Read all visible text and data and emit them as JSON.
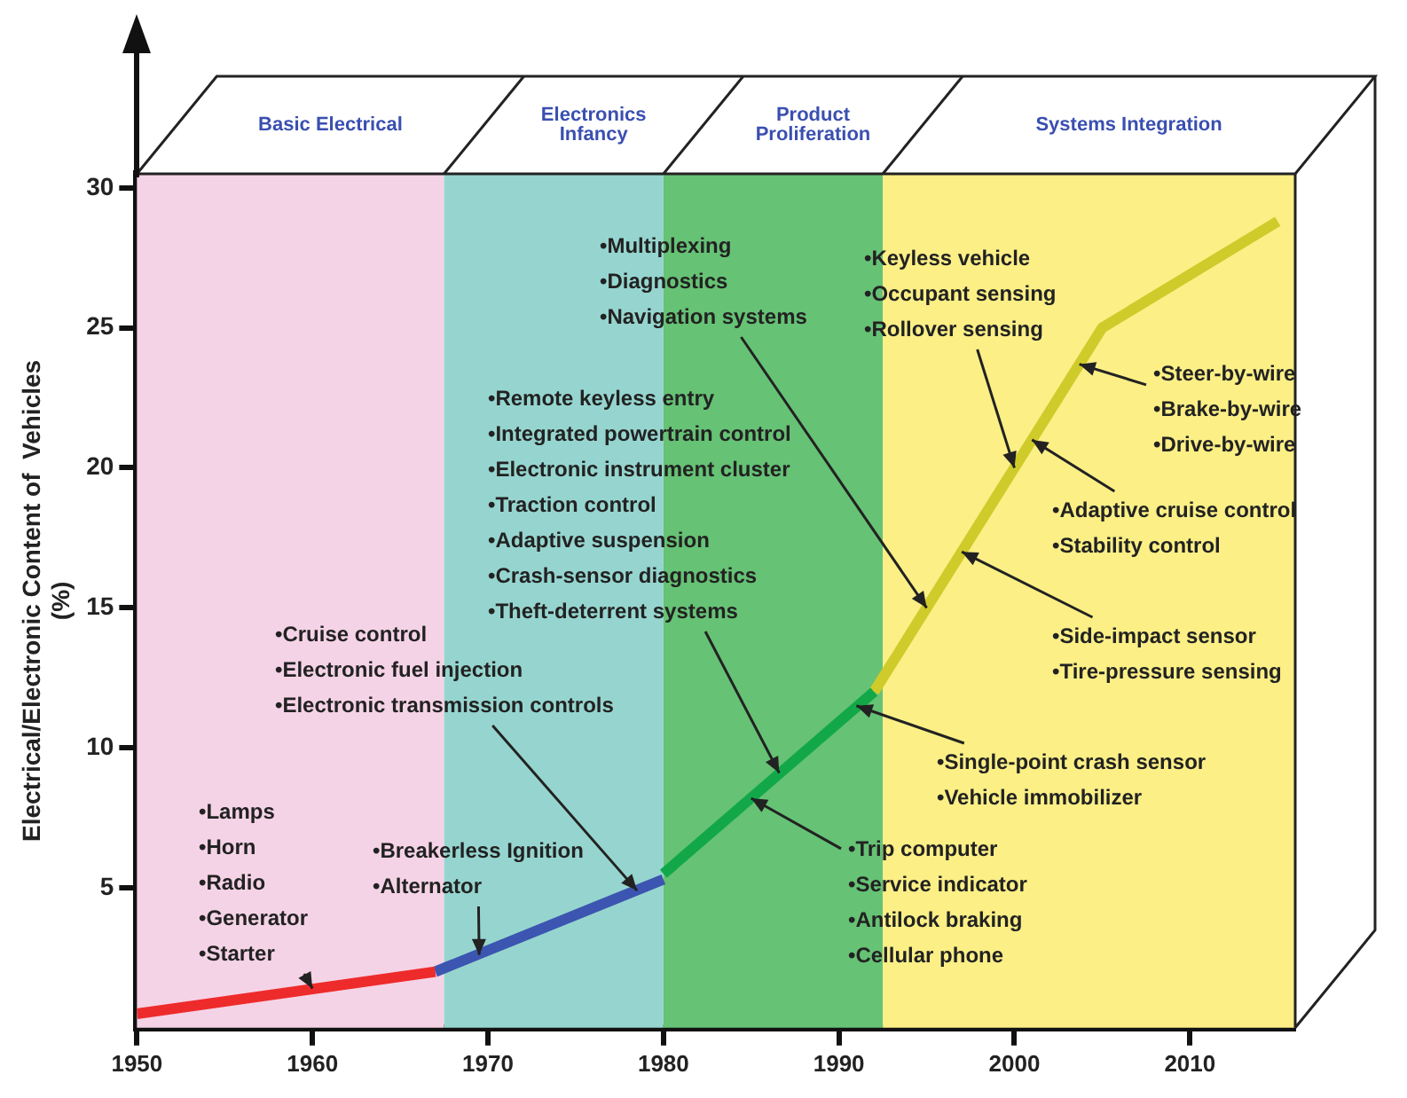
{
  "chart_data": {
    "type": "line",
    "ylabel": "Electrical/Electronic Content of  Vehicles\n(%)",
    "xlim": [
      1950,
      2016
    ],
    "xticks": [
      1950,
      1960,
      1970,
      1980,
      1990,
      2000,
      2010
    ],
    "ylim": [
      0,
      30.5
    ],
    "yticks": [
      5,
      10,
      15,
      20,
      25,
      30
    ],
    "grid": false,
    "legend": false,
    "marker": "none",
    "series": [
      {
        "color": "#ee2b2b",
        "x": [
          1950,
          1967
        ],
        "values": [
          0.5,
          2
        ]
      },
      {
        "color": "#3c55b0",
        "x": [
          1967,
          1980
        ],
        "values": [
          2,
          5.3
        ]
      },
      {
        "color": "#12a84a",
        "x": [
          1980,
          1992
        ],
        "values": [
          5.5,
          12
        ]
      },
      {
        "color": "#cfcb2a",
        "x": [
          1992,
          2005,
          2015
        ],
        "values": [
          12,
          25,
          28.8
        ]
      }
    ],
    "bands": [
      {
        "axis": "x",
        "from": 1950,
        "to": 1967.5,
        "label": "Basic Electrical",
        "color": "#f5d3e6"
      },
      {
        "axis": "x",
        "from": 1967.5,
        "to": 1980,
        "label": "Electronics\nInfancy",
        "color": "#96d5cf"
      },
      {
        "axis": "x",
        "from": 1980,
        "to": 1992.5,
        "label": "Product\nProliferation",
        "color": "#66c275"
      },
      {
        "axis": "x",
        "from": 1992.5,
        "to": 2016,
        "label": "Systems Integration",
        "color": "#fbef86"
      }
    ],
    "annotations": [
      {
        "text": "•Lamps\n•Horn\n•Radio\n•Generator\n•Starter",
        "x": 1960,
        "y": 1.4
      },
      {
        "text": "•Breakerless Ignition\n•Alternator",
        "x": 1969.5,
        "y": 2.6
      },
      {
        "text": "•Cruise control\n•Electronic fuel injection\n•Electronic transmission controls",
        "x": 1978.5,
        "y": 4.9
      },
      {
        "text": "•Remote keyless entry\n•Integrated powertrain control\n•Electronic instrument cluster\n•Traction control\n•Adaptive suspension\n•Crash-sensor diagnostics\n•Theft-deterrent systems",
        "x": 1986.6,
        "y": 9.1
      },
      {
        "text": "•Multiplexing\n•Diagnostics\n•Navigation systems",
        "x": 1995,
        "y": 15
      },
      {
        "text": "•Keyless vehicle\n•Occupant sensing\n•Rollover sensing",
        "x": 2000,
        "y": 20
      },
      {
        "text": "•Steer-by-wire\n•Brake-by-wire\n•Drive-by-wire",
        "x": 2003.7,
        "y": 23.7
      },
      {
        "text": "•Adaptive cruise control\n•Stability control",
        "x": 2001,
        "y": 21
      },
      {
        "text": "•Side-impact sensor\n•Tire-pressure sensing",
        "x": 1997,
        "y": 17
      },
      {
        "text": "•Single-point crash sensor\n•Vehicle immobilizer",
        "x": 1991,
        "y": 11.5
      },
      {
        "text": "•Trip computer\n•Service indicator\n•Antilock braking\n•Cellular phone",
        "x": 1985,
        "y": 8.2
      }
    ]
  }
}
